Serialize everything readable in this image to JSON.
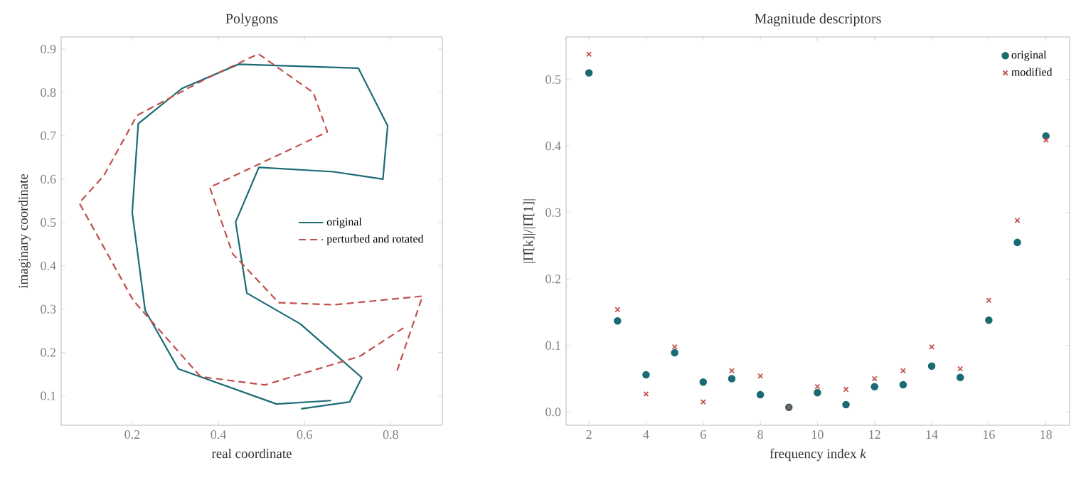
{
  "chart_data": [
    {
      "type": "line",
      "title": "Polygons",
      "xlabel": "real coordinate",
      "ylabel": "imaginary coordinate",
      "xlim": [
        0.035,
        0.92
      ],
      "ylim": [
        0.032,
        0.928
      ],
      "xticks": [
        0.2,
        0.4,
        0.6,
        0.8
      ],
      "yticks": [
        0.1,
        0.2,
        0.3,
        0.4,
        0.5,
        0.6,
        0.7,
        0.8,
        0.9
      ],
      "legend": "right",
      "series": [
        {
          "name": "original",
          "color": "#1a6b73",
          "line_style": "solid",
          "x": [
            0.592,
            0.705,
            0.733,
            0.59,
            0.466,
            0.44,
            0.494,
            0.667,
            0.782,
            0.793,
            0.725,
            0.447,
            0.315,
            0.214,
            0.2,
            0.23,
            0.307,
            0.535,
            0.662
          ],
          "values": [
            0.07,
            0.086,
            0.142,
            0.266,
            0.337,
            0.501,
            0.627,
            0.617,
            0.6,
            0.723,
            0.856,
            0.865,
            0.809,
            0.728,
            0.523,
            0.297,
            0.162,
            0.081,
            0.089
          ]
        },
        {
          "name": "perturbed and rotated",
          "color": "#c0504d",
          "line_style": "dashed",
          "x": [
            0.815,
            0.874,
            0.668,
            0.54,
            0.433,
            0.38,
            0.653,
            0.62,
            0.493,
            0.372,
            0.211,
            0.134,
            0.077,
            0.203,
            0.359,
            0.508,
            0.728,
            0.832
          ],
          "values": [
            0.158,
            0.33,
            0.31,
            0.315,
            0.428,
            0.581,
            0.709,
            0.8,
            0.889,
            0.832,
            0.747,
            0.608,
            0.545,
            0.319,
            0.144,
            0.125,
            0.191,
            0.258
          ]
        }
      ]
    },
    {
      "type": "scatter",
      "title": "Magnitude descriptors",
      "xlabel": "frequency index *k*",
      "ylabel": "|Π̂[k]|/|Π̂[1]|",
      "xlim": [
        1.2,
        18.83
      ],
      "ylim": [
        -0.02,
        0.564
      ],
      "xticks": [
        2,
        4,
        6,
        8,
        10,
        12,
        14,
        16,
        18
      ],
      "yticks": [
        {
          "value": 0,
          "label": "0.0"
        },
        0.1,
        0.2,
        0.3,
        0.4,
        0.5
      ],
      "legend": "top right",
      "x": [
        2,
        3,
        4,
        5,
        6,
        7,
        8,
        9,
        10,
        11,
        12,
        13,
        14,
        15,
        16,
        17,
        18
      ],
      "series": [
        {
          "name": "original",
          "color": "#1a6b73",
          "marker": "circle",
          "values": [
            0.51,
            0.137,
            0.056,
            0.089,
            0.045,
            0.05,
            0.026,
            0.007,
            0.029,
            0.011,
            0.038,
            0.041,
            0.069,
            0.052,
            0.138,
            0.255,
            0.415
          ]
        },
        {
          "name": "modified",
          "color": "#c0504d",
          "marker": "cross",
          "values": [
            0.538,
            0.154,
            0.027,
            0.098,
            0.015,
            0.062,
            0.054,
            0.007,
            0.038,
            0.034,
            0.05,
            0.062,
            0.098,
            0.065,
            0.168,
            0.288,
            0.409
          ]
        }
      ]
    }
  ]
}
